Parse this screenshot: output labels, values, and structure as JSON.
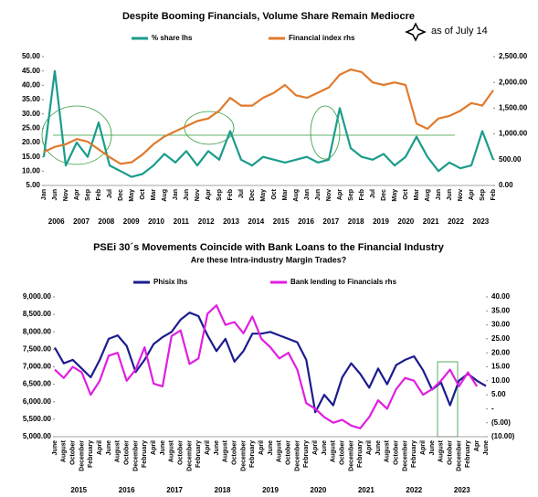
{
  "chart_data": [
    {
      "type": "line",
      "title": "Despite Booming Financials, Volume Share Remain Mediocre",
      "annotation": "as of July 14",
      "categories": [
        "Jan",
        "Jun",
        "Nov",
        "Apr",
        "Sep",
        "Feb",
        "Jul",
        "Dec",
        "May",
        "Oct",
        "Mar",
        "Aug",
        "Jan",
        "Jun",
        "Nov",
        "Apr",
        "Sep",
        "Feb",
        "Jul",
        "Dec",
        "May",
        "Oct",
        "Mar",
        "Aug",
        "Jan",
        "Jun",
        "Nov",
        "Apr",
        "Sep",
        "Feb",
        "Jul",
        "Dec",
        "May",
        "Oct",
        "Mar",
        "Aug",
        "Jan",
        "Jun",
        "Nov",
        "Apr",
        "Sep",
        "Feb"
      ],
      "year_labels": [
        "2006",
        "2007",
        "2008",
        "2009",
        "2010",
        "2011",
        "2012",
        "2013",
        "2014",
        "2015",
        "2016",
        "2017",
        "2018",
        "2019",
        "2020",
        "2021",
        "2022",
        "2023"
      ],
      "series": [
        {
          "name": "% share lhs",
          "color": "#1b9c8c",
          "axis": "y",
          "values": [
            15,
            45,
            12,
            20,
            15,
            27,
            12,
            10,
            8,
            9,
            12,
            16,
            13,
            17,
            12,
            17,
            14,
            24,
            14,
            12,
            15,
            14,
            13,
            14,
            15,
            13,
            14,
            32,
            18,
            15,
            14,
            16,
            12,
            15,
            22,
            15,
            10,
            13,
            11,
            12,
            24,
            14
          ]
        },
        {
          "name": "Financial index rhs",
          "color": "#e07a2c",
          "axis": "y2",
          "values": [
            650,
            750,
            800,
            900,
            850,
            700,
            550,
            420,
            450,
            600,
            800,
            950,
            1050,
            1150,
            1250,
            1300,
            1450,
            1700,
            1550,
            1550,
            1700,
            1800,
            1950,
            1750,
            1700,
            1800,
            1900,
            2150,
            2250,
            2200,
            2000,
            1950,
            2000,
            1950,
            1200,
            1100,
            1300,
            1350,
            1450,
            1600,
            1550,
            1850
          ]
        }
      ],
      "ylim": [
        5,
        50
      ],
      "yticks": [
        {
          "value": 5,
          "label": "5.00"
        },
        {
          "value": 10,
          "label": "10.00"
        },
        {
          "value": 15,
          "label": "15.00"
        },
        {
          "value": 20,
          "label": "20.00"
        },
        {
          "value": 25,
          "label": "25.00"
        },
        {
          "value": 30,
          "label": "30.00"
        },
        {
          "value": 35,
          "label": "35.00"
        },
        {
          "value": 40,
          "label": "40.00"
        },
        {
          "value": 45,
          "label": "45.00"
        },
        {
          "value": 50,
          "label": "50.00"
        }
      ],
      "y2lim": [
        0,
        2500
      ],
      "y2ticks": [
        {
          "value": 0,
          "label": "0.00"
        },
        {
          "value": 500,
          "label": "500.00"
        },
        {
          "value": 1000,
          "label": "1,000.00"
        },
        {
          "value": 1500,
          "label": "1,500.00"
        },
        {
          "value": 2000,
          "label": "2,000.00"
        },
        {
          "value": 2500,
          "label": "2,500.00"
        }
      ]
    },
    {
      "type": "line",
      "title": "PSEi 30´s Movements Coincide with Bank Loans to the Financial Industry",
      "subtitle": "Are these Intra-industry Margin Trades?",
      "categories": [
        "June",
        "August",
        "October",
        "December",
        "February",
        "April",
        "June",
        "August",
        "October",
        "December",
        "February",
        "April",
        "June",
        "August",
        "October",
        "December",
        "February",
        "April",
        "June",
        "August",
        "October",
        "December",
        "February",
        "April",
        "June",
        "August",
        "October",
        "December",
        "February",
        "April",
        "June",
        "August",
        "October",
        "December",
        "February",
        "April",
        "June",
        "August",
        "October",
        "December",
        "February",
        "April",
        "June",
        "August",
        "October",
        "December",
        "February",
        "Apr",
        "June"
      ],
      "year_labels": [
        "2015",
        "2016",
        "2017",
        "2018",
        "2019",
        "2020",
        "2021",
        "2022",
        "2023"
      ],
      "series": [
        {
          "name": "Phisix lhs",
          "color": "#1c1c8f",
          "axis": "y",
          "values": [
            7550,
            7100,
            7200,
            6950,
            6700,
            7200,
            7800,
            7900,
            7600,
            6850,
            7200,
            7650,
            7850,
            8000,
            8350,
            8550,
            8450,
            7900,
            7450,
            7800,
            7150,
            7450,
            7950,
            7950,
            8000,
            7900,
            7800,
            7700,
            7200,
            5700,
            6200,
            5900,
            6700,
            7100,
            6800,
            6400,
            6950,
            6500,
            7050,
            7200,
            7300,
            6900,
            6350,
            6550,
            5900,
            6600,
            6800,
            6600,
            6450
          ]
        },
        {
          "name": "Bank lending to Financials rhs",
          "color": "#e01ee0",
          "axis": "y2",
          "values": [
            14,
            11,
            15,
            13,
            5,
            10,
            19,
            20,
            10,
            14,
            22,
            9,
            8,
            26,
            28,
            16,
            18,
            34,
            37,
            30,
            31,
            27,
            33,
            25,
            22,
            18,
            20,
            14,
            2,
            0,
            -3,
            -5,
            -4,
            -6,
            -7,
            -3,
            3,
            0,
            7,
            11,
            10,
            5,
            7,
            10,
            14,
            8,
            13,
            8,
            null
          ]
        }
      ],
      "ylim": [
        5000,
        9000
      ],
      "yticks": [
        {
          "value": 5000,
          "label": "5,000.00"
        },
        {
          "value": 5500,
          "label": "5,500.00"
        },
        {
          "value": 6000,
          "label": "6,000.00"
        },
        {
          "value": 6500,
          "label": "6,500.00"
        },
        {
          "value": 7000,
          "label": "7,000.00"
        },
        {
          "value": 7500,
          "label": "7,500.00"
        },
        {
          "value": 8000,
          "label": "8,000.00"
        },
        {
          "value": 8500,
          "label": "8,500.00"
        },
        {
          "value": 9000,
          "label": "9,000.00"
        }
      ],
      "y2lim": [
        -10,
        40
      ],
      "y2ticks": [
        {
          "value": -10,
          "label": "(10.00)"
        },
        {
          "value": -5,
          "label": "(5.00)"
        },
        {
          "value": 0,
          "label": "-"
        },
        {
          "value": 5,
          "label": "5.00"
        },
        {
          "value": 10,
          "label": "10.00"
        },
        {
          "value": 15,
          "label": "15.00"
        },
        {
          "value": 20,
          "label": "20.00"
        },
        {
          "value": 25,
          "label": "25.00"
        },
        {
          "value": 30,
          "label": "30.00"
        },
        {
          "value": 35,
          "label": "35.00"
        },
        {
          "value": 40,
          "label": "40.00"
        }
      ]
    }
  ]
}
